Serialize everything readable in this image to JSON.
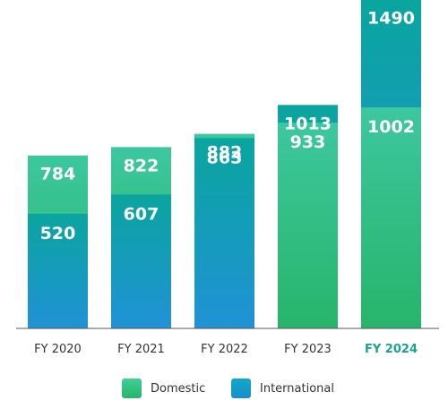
{
  "chart_data": {
    "type": "bar",
    "stacking": "overlapped",
    "categories": [
      "FY 2020",
      "FY 2021",
      "FY 2022",
      "FY 2023",
      "FY 2024"
    ],
    "highlighted_category": "FY 2024",
    "series": [
      {
        "name": "Domestic",
        "values": [
          784,
          822,
          882,
          933,
          1002
        ],
        "color": "#2fc090"
      },
      {
        "name": "International",
        "values": [
          520,
          607,
          863,
          1013,
          1490
        ],
        "color": "#16a0c8"
      }
    ],
    "label_positions": [
      {
        "top": "Domestic",
        "inner": "International"
      },
      {
        "top": "Domestic",
        "inner": "International"
      },
      {
        "top": "Domestic",
        "inner": "International"
      },
      {
        "top": "International",
        "inner": "Domestic"
      },
      {
        "top": "International",
        "inner": "Domestic"
      }
    ],
    "bar_colors": [
      "teal-blue",
      "teal-blue",
      "teal-blue",
      "green",
      "green"
    ],
    "legend_position": "bottom",
    "grid": false
  },
  "legend": {
    "domestic_label": "Domestic",
    "international_label": "International"
  },
  "colors": {
    "domestic": "#2fc090",
    "international": "#16a0c8",
    "highlight_text": "#17a58a"
  }
}
